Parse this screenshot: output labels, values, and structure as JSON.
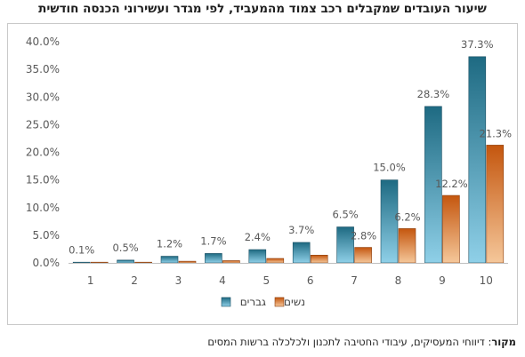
{
  "chart_data": {
    "type": "bar",
    "title": "שיעור העובדים שמקבלים רכב צמוד מהמעביד, לפי מגדר ועשירוני הכנסה חודשית",
    "categories": [
      "1",
      "2",
      "3",
      "4",
      "5",
      "6",
      "7",
      "8",
      "9",
      "10"
    ],
    "series": [
      {
        "name": "גברים",
        "color": "#2a7f98",
        "values": [
          0.1,
          0.5,
          1.2,
          1.7,
          2.4,
          3.7,
          6.5,
          15.0,
          28.3,
          37.3
        ],
        "labels": [
          "0.1%",
          "0.5%",
          "1.2%",
          "1.7%",
          "2.4%",
          "3.7%",
          "6.5%",
          "15.0%",
          "28.3%",
          "37.3%"
        ]
      },
      {
        "name": "נשים",
        "color": "#d2691e",
        "values": [
          0.0,
          0.1,
          0.3,
          0.4,
          0.8,
          1.4,
          2.8,
          6.2,
          12.2,
          21.3
        ],
        "labels": [
          "",
          "",
          "",
          "",
          "",
          "",
          "2.8%",
          "6.2%",
          "12.2%",
          "21.3%"
        ]
      }
    ],
    "yticks": [
      "0.0%",
      "5.0%",
      "10.0%",
      "15.0%",
      "20.0%",
      "25.0%",
      "30.0%",
      "35.0%",
      "40.0%"
    ],
    "ylim": [
      0,
      40
    ],
    "grid": false,
    "legend_position": "bottom"
  },
  "source": {
    "label": "מקור",
    "separator": ": ",
    "text": "דיווחי המעסיקים, עיבודי החטיבה לתכנון ולכלכלה ברשות המסים"
  }
}
